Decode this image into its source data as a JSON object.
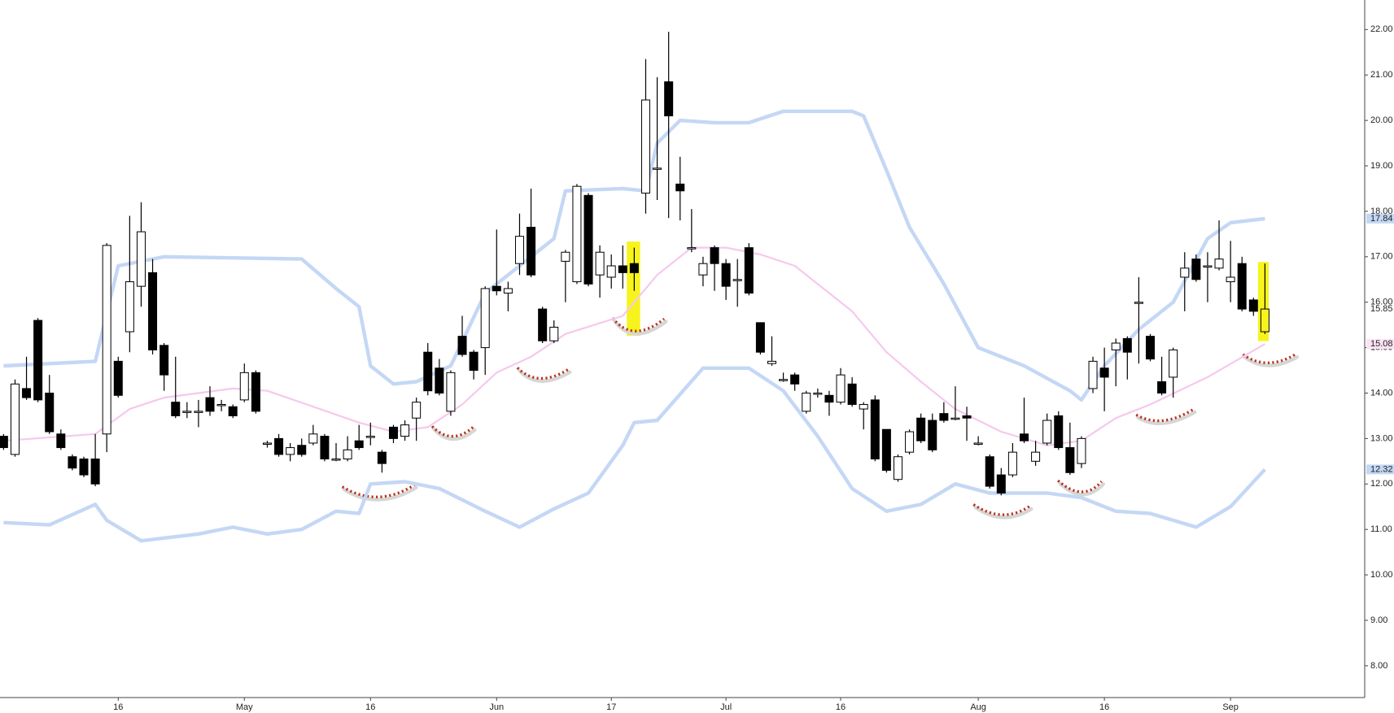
{
  "chart_data": {
    "type": "candlestick",
    "categories": [
      null,
      null,
      null,
      null,
      null,
      null,
      null,
      null,
      null,
      null,
      "16",
      null,
      null,
      null,
      null,
      null,
      null,
      null,
      null,
      null,
      null,
      "May",
      null,
      null,
      null,
      null,
      null,
      null,
      null,
      null,
      null,
      null,
      "16",
      null,
      null,
      null,
      null,
      null,
      null,
      null,
      null,
      null,
      null,
      "Jun",
      null,
      null,
      null,
      null,
      null,
      null,
      null,
      null,
      null,
      "17",
      null,
      null,
      null,
      null,
      null,
      null,
      null,
      null,
      null,
      "Jul",
      null,
      null,
      null,
      null,
      null,
      null,
      null,
      null,
      null,
      "16",
      null,
      null,
      null,
      null,
      null,
      null,
      null,
      null,
      null,
      null,
      null,
      "Aug",
      null,
      null,
      null,
      null,
      null,
      null,
      null,
      null,
      null,
      null,
      "16",
      null,
      null,
      null,
      null,
      null,
      null,
      null,
      null,
      null,
      null,
      "Sep",
      null,
      null,
      null
    ],
    "open": [
      13.05,
      12.65,
      14.1,
      15.6,
      14.0,
      13.1,
      12.6,
      12.55,
      12.55,
      13.1,
      14.7,
      15.35,
      16.35,
      16.65,
      15.05,
      13.8,
      13.6,
      13.6,
      13.9,
      13.75,
      13.7,
      13.85,
      14.45,
      12.9,
      13.0,
      12.65,
      12.85,
      12.9,
      13.05,
      12.55,
      12.55,
      12.95,
      13.05,
      12.7,
      13.25,
      13.05,
      13.45,
      14.9,
      14.55,
      13.6,
      15.25,
      14.9,
      15.0,
      16.35,
      16.2,
      16.85,
      17.65,
      15.85,
      15.15,
      16.9,
      16.45,
      18.35,
      16.6,
      16.55,
      16.8,
      16.85,
      18.4,
      18.95,
      20.85,
      18.6,
      17.2,
      16.6,
      17.2,
      16.85,
      16.5,
      17.2,
      15.55,
      14.65,
      14.3,
      14.4,
      13.6,
      14.0,
      13.95,
      13.8,
      14.2,
      13.65,
      13.85,
      13.2,
      12.1,
      12.7,
      13.45,
      13.4,
      13.55,
      13.45,
      13.5,
      12.9,
      12.6,
      12.2,
      12.2,
      13.1,
      12.5,
      12.9,
      13.5,
      12.8,
      12.45,
      14.1,
      14.55,
      14.95,
      15.2,
      16.0,
      15.25,
      14.25,
      14.35,
      16.55,
      16.95,
      16.8,
      16.75,
      16.45,
      16.85,
      16.05,
      15.35
    ],
    "high": [
      13.1,
      14.3,
      14.8,
      15.65,
      14.4,
      13.2,
      12.65,
      12.6,
      13.1,
      17.3,
      14.8,
      17.9,
      18.2,
      16.95,
      15.1,
      14.8,
      13.8,
      13.85,
      14.15,
      13.85,
      13.75,
      14.65,
      14.5,
      12.95,
      13.1,
      12.9,
      13.0,
      13.3,
      13.1,
      12.9,
      13.05,
      13.3,
      13.35,
      12.75,
      13.3,
      13.4,
      13.9,
      15.1,
      14.75,
      14.5,
      15.7,
      14.95,
      16.35,
      17.6,
      16.45,
      17.95,
      18.5,
      15.9,
      15.6,
      17.15,
      18.6,
      18.4,
      17.25,
      17.05,
      17.25,
      17.2,
      21.35,
      20.95,
      21.95,
      19.2,
      18.05,
      17.0,
      17.25,
      16.95,
      16.95,
      17.3,
      15.55,
      15.25,
      14.45,
      14.45,
      14.05,
      14.1,
      14.05,
      14.55,
      14.35,
      13.8,
      13.95,
      13.2,
      12.65,
      13.2,
      13.55,
      13.55,
      13.8,
      14.15,
      13.7,
      13.05,
      12.65,
      12.35,
      12.9,
      13.9,
      12.95,
      13.55,
      13.6,
      13.35,
      13.05,
      14.8,
      15.0,
      15.2,
      15.25,
      16.55,
      15.3,
      14.8,
      15.0,
      17.1,
      17.05,
      17.1,
      17.8,
      17.35,
      17.0,
      16.1,
      16.85
    ],
    "low": [
      12.75,
      12.6,
      13.85,
      13.8,
      13.1,
      12.75,
      12.3,
      12.15,
      11.95,
      12.7,
      13.9,
      14.9,
      15.9,
      14.85,
      14.05,
      13.45,
      13.45,
      13.25,
      13.5,
      13.6,
      13.45,
      13.8,
      13.55,
      12.8,
      12.6,
      12.5,
      12.6,
      12.85,
      12.5,
      12.5,
      12.5,
      12.75,
      12.85,
      12.25,
      12.9,
      12.95,
      12.95,
      13.95,
      13.95,
      13.5,
      14.8,
      14.3,
      14.4,
      16.15,
      15.8,
      16.6,
      16.55,
      15.1,
      15.1,
      16.0,
      16.4,
      16.35,
      16.1,
      16.3,
      16.3,
      16.25,
      17.95,
      18.25,
      17.85,
      17.8,
      17.1,
      16.35,
      16.25,
      16.05,
      15.9,
      16.15,
      14.85,
      14.6,
      14.25,
      14.05,
      13.55,
      13.9,
      13.5,
      13.75,
      13.7,
      13.2,
      12.5,
      12.25,
      12.05,
      12.65,
      12.9,
      12.7,
      13.35,
      13.4,
      12.95,
      12.85,
      11.9,
      11.75,
      12.15,
      12.9,
      12.4,
      12.85,
      12.75,
      12.2,
      12.35,
      14.0,
      13.6,
      14.15,
      14.3,
      14.65,
      14.7,
      13.95,
      13.9,
      15.8,
      16.45,
      16.0,
      16.7,
      16.0,
      15.8,
      15.7,
      15.3
    ],
    "close": [
      12.8,
      14.2,
      13.9,
      13.85,
      13.15,
      12.8,
      12.35,
      12.2,
      12.0,
      17.25,
      13.95,
      16.45,
      17.55,
      14.95,
      14.4,
      13.5,
      13.6,
      13.6,
      13.6,
      13.75,
      13.5,
      14.45,
      13.6,
      12.9,
      12.65,
      12.8,
      12.65,
      13.1,
      12.55,
      12.55,
      12.75,
      12.8,
      13.05,
      12.45,
      13.0,
      13.3,
      13.8,
      14.05,
      14.0,
      14.45,
      14.85,
      14.5,
      16.3,
      16.25,
      16.3,
      17.45,
      16.6,
      15.15,
      15.45,
      17.1,
      18.55,
      16.4,
      17.1,
      16.8,
      16.65,
      16.65,
      20.45,
      18.95,
      20.1,
      18.45,
      17.2,
      16.85,
      16.85,
      16.35,
      16.5,
      16.2,
      14.9,
      14.7,
      14.3,
      14.2,
      14.0,
      14.0,
      13.8,
      14.4,
      13.75,
      13.75,
      12.55,
      12.3,
      12.6,
      13.15,
      12.95,
      12.75,
      13.4,
      13.45,
      13.45,
      12.9,
      11.95,
      11.8,
      12.7,
      12.95,
      12.7,
      13.4,
      12.8,
      12.25,
      13.0,
      14.7,
      14.35,
      15.1,
      14.9,
      16.0,
      14.75,
      14.0,
      14.95,
      16.75,
      16.5,
      16.8,
      16.95,
      16.55,
      15.85,
      15.8,
      15.85
    ],
    "close_last_label": "15.85",
    "up_color": "#ffffff",
    "down_color": "#000000",
    "bands": [
      {
        "color": "#c4d7f5",
        "x": [
          0,
          8,
          10,
          14,
          26,
          29,
          31,
          32,
          34,
          36,
          39,
          42,
          45,
          48,
          49,
          54,
          56,
          57,
          59,
          62,
          65,
          68,
          74,
          75,
          77,
          79,
          82,
          85,
          89,
          93,
          94,
          96,
          99,
          102,
          105,
          107,
          110
        ],
        "values": [
          14.6,
          14.7,
          16.8,
          17.0,
          16.95,
          16.3,
          15.9,
          14.6,
          14.2,
          14.25,
          14.6,
          16.2,
          16.8,
          17.4,
          18.45,
          18.5,
          18.45,
          19.5,
          20.0,
          19.95,
          19.95,
          20.2,
          20.2,
          20.1,
          18.9,
          17.65,
          16.4,
          15.0,
          14.6,
          14.05,
          13.85,
          14.6,
          15.4,
          16.0,
          17.4,
          17.75,
          17.84
        ],
        "last_label": "17.84"
      },
      {
        "color": "#f6c8ec",
        "x": [
          0,
          8,
          11,
          14,
          20,
          23,
          31,
          34,
          37,
          40,
          43,
          46,
          49,
          54,
          57,
          60,
          63,
          66,
          69,
          74,
          77,
          80,
          83,
          87,
          91,
          94,
          97,
          100,
          105,
          110
        ],
        "values": [
          12.95,
          13.1,
          13.65,
          13.9,
          14.1,
          14.05,
          13.35,
          13.15,
          13.25,
          13.75,
          14.45,
          14.8,
          15.3,
          15.7,
          16.6,
          17.2,
          17.2,
          17.05,
          16.8,
          15.8,
          14.9,
          14.25,
          13.65,
          13.15,
          12.85,
          12.95,
          13.45,
          13.75,
          14.35,
          15.08
        ],
        "last_label": "15.08"
      },
      {
        "color": "#c4d7f5",
        "x": [
          0,
          4,
          8,
          9,
          12,
          17,
          20,
          23,
          26,
          29,
          31,
          32,
          35,
          38,
          42,
          45,
          48,
          51,
          54,
          55,
          57,
          61,
          65,
          68,
          71,
          74,
          77,
          80,
          83,
          86,
          91,
          94,
          97,
          100,
          104,
          107,
          110
        ],
        "values": [
          11.15,
          11.1,
          11.55,
          11.2,
          10.75,
          10.9,
          11.05,
          10.9,
          11.0,
          11.4,
          11.35,
          12.0,
          12.05,
          11.9,
          11.4,
          11.05,
          11.45,
          11.8,
          12.85,
          13.35,
          13.4,
          14.55,
          14.55,
          14.05,
          13.05,
          11.9,
          11.4,
          11.55,
          12.0,
          11.8,
          11.8,
          11.7,
          11.4,
          11.35,
          11.05,
          11.5,
          12.32
        ],
        "last_label": "12.32"
      }
    ],
    "xlim": [
      -0.31,
      118.7
    ],
    "ylim": [
      7.3,
      22.65
    ],
    "yticks": [
      {
        "value": 8,
        "label": "8.00"
      },
      {
        "value": 9,
        "label": "9.00"
      },
      {
        "value": 10,
        "label": "10.00"
      },
      {
        "value": 11,
        "label": "11.00"
      },
      {
        "value": 12,
        "label": "12.00"
      },
      {
        "value": 13,
        "label": "13.00"
      },
      {
        "value": 14,
        "label": "14.00"
      },
      {
        "value": 15,
        "label": "15.00"
      },
      {
        "value": 16,
        "label": "16.00"
      },
      {
        "value": 17,
        "label": "17.00"
      },
      {
        "value": 18,
        "label": "18.00"
      },
      {
        "value": 19,
        "label": "19.00"
      },
      {
        "value": 20,
        "label": "20.00"
      },
      {
        "value": 21,
        "label": "21.00"
      },
      {
        "value": 22,
        "label": "22.00"
      }
    ]
  }
}
